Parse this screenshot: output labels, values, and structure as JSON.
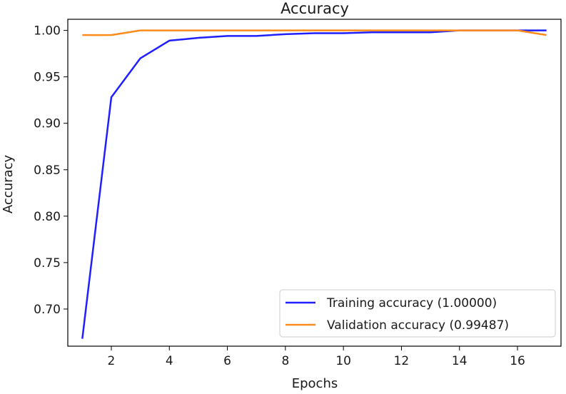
{
  "chart_data": {
    "type": "line",
    "title": "Accuracy",
    "xlabel": "Epochs",
    "ylabel": "Accuracy",
    "xlim": [
      0.5,
      17.5
    ],
    "ylim": [
      0.66,
      1.012
    ],
    "xticks": [
      2,
      4,
      6,
      8,
      10,
      12,
      14,
      16
    ],
    "yticks": [
      0.7,
      0.75,
      0.8,
      0.85,
      0.9,
      0.95,
      1.0
    ],
    "ytick_labels": [
      "0.70",
      "0.75",
      "0.80",
      "0.85",
      "0.90",
      "0.95",
      "1.00"
    ],
    "grid": false,
    "legend_position": "lower-right",
    "x": [
      1,
      2,
      3,
      4,
      5,
      6,
      7,
      8,
      9,
      10,
      11,
      12,
      13,
      14,
      15,
      16,
      17
    ],
    "series": [
      {
        "name": "Training accuracy (1.00000)",
        "color": "#1f1fff",
        "values": [
          0.668,
          0.928,
          0.97,
          0.989,
          0.992,
          0.994,
          0.994,
          0.996,
          0.997,
          0.997,
          0.998,
          0.998,
          0.998,
          1.0,
          1.0,
          1.0,
          1.0
        ]
      },
      {
        "name": "Validation accuracy (0.99487)",
        "color": "#ff8c1a",
        "values": [
          0.995,
          0.995,
          1.0,
          1.0,
          1.0,
          1.0,
          1.0,
          1.0,
          1.0,
          1.0,
          1.0,
          1.0,
          1.0,
          1.0,
          1.0,
          1.0,
          0.995
        ]
      }
    ]
  }
}
